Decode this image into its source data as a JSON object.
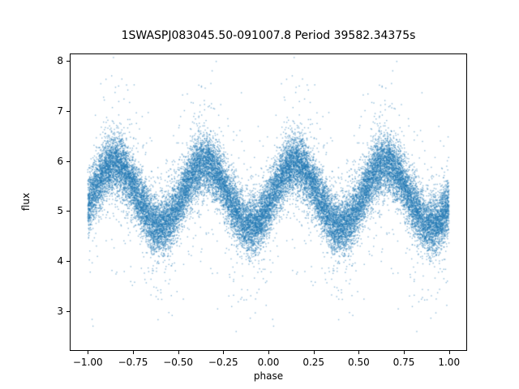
{
  "title": "1SWASPJ083045.50-091007.8 Period 39582.34375s",
  "chart_data": {
    "type": "scatter",
    "title": "1SWASPJ083045.50-091007.8 Period 39582.34375s",
    "xlabel": "phase",
    "ylabel": "flux",
    "xlim": [
      -1.1,
      1.1
    ],
    "ylim": [
      2.2,
      8.15
    ],
    "xtick_values": [
      -1.0,
      -0.75,
      -0.5,
      -0.25,
      0.0,
      0.25,
      0.5,
      0.75,
      1.0
    ],
    "xtick_labels": [
      "−1.00",
      "−0.75",
      "−0.50",
      "−0.25",
      "0.00",
      "0.25",
      "0.50",
      "0.75",
      "1.00"
    ],
    "ytick_values": [
      3,
      4,
      5,
      6,
      7,
      8
    ],
    "ytick_labels": [
      "3",
      "4",
      "5",
      "6",
      "7",
      "8"
    ],
    "grid": false,
    "legend": "none",
    "point_color": "#1f77b4",
    "point_alpha": 0.5,
    "marker_size_px": 1.4,
    "seed": 7,
    "model": {
      "description": "phase-folded stellar light curve; each observation plotted twice, at phase u in [0,1) and u-1 in [-1,0); flux = mean + amplitude * cos(2*pi*(u - peak_phase)/period) + gaussian noise with occasional outliers",
      "n_observations": 14000,
      "mean_flux": 5.32,
      "amplitude": 0.63,
      "period_phase": 0.5,
      "peak_phases": [
        -0.85,
        -0.35,
        0.15,
        0.65
      ],
      "trough_phases": [
        -0.6,
        -0.1,
        0.4,
        0.9
      ],
      "peak_phase": 0.15,
      "peak_flux_approx": 5.95,
      "trough_flux_approx": 4.69,
      "noise_sigma": 0.28,
      "outlier_fraction": 0.07,
      "outlier_sigma": 0.75,
      "flux_min_seen": 2.5,
      "flux_max_seen": 8.1
    }
  }
}
